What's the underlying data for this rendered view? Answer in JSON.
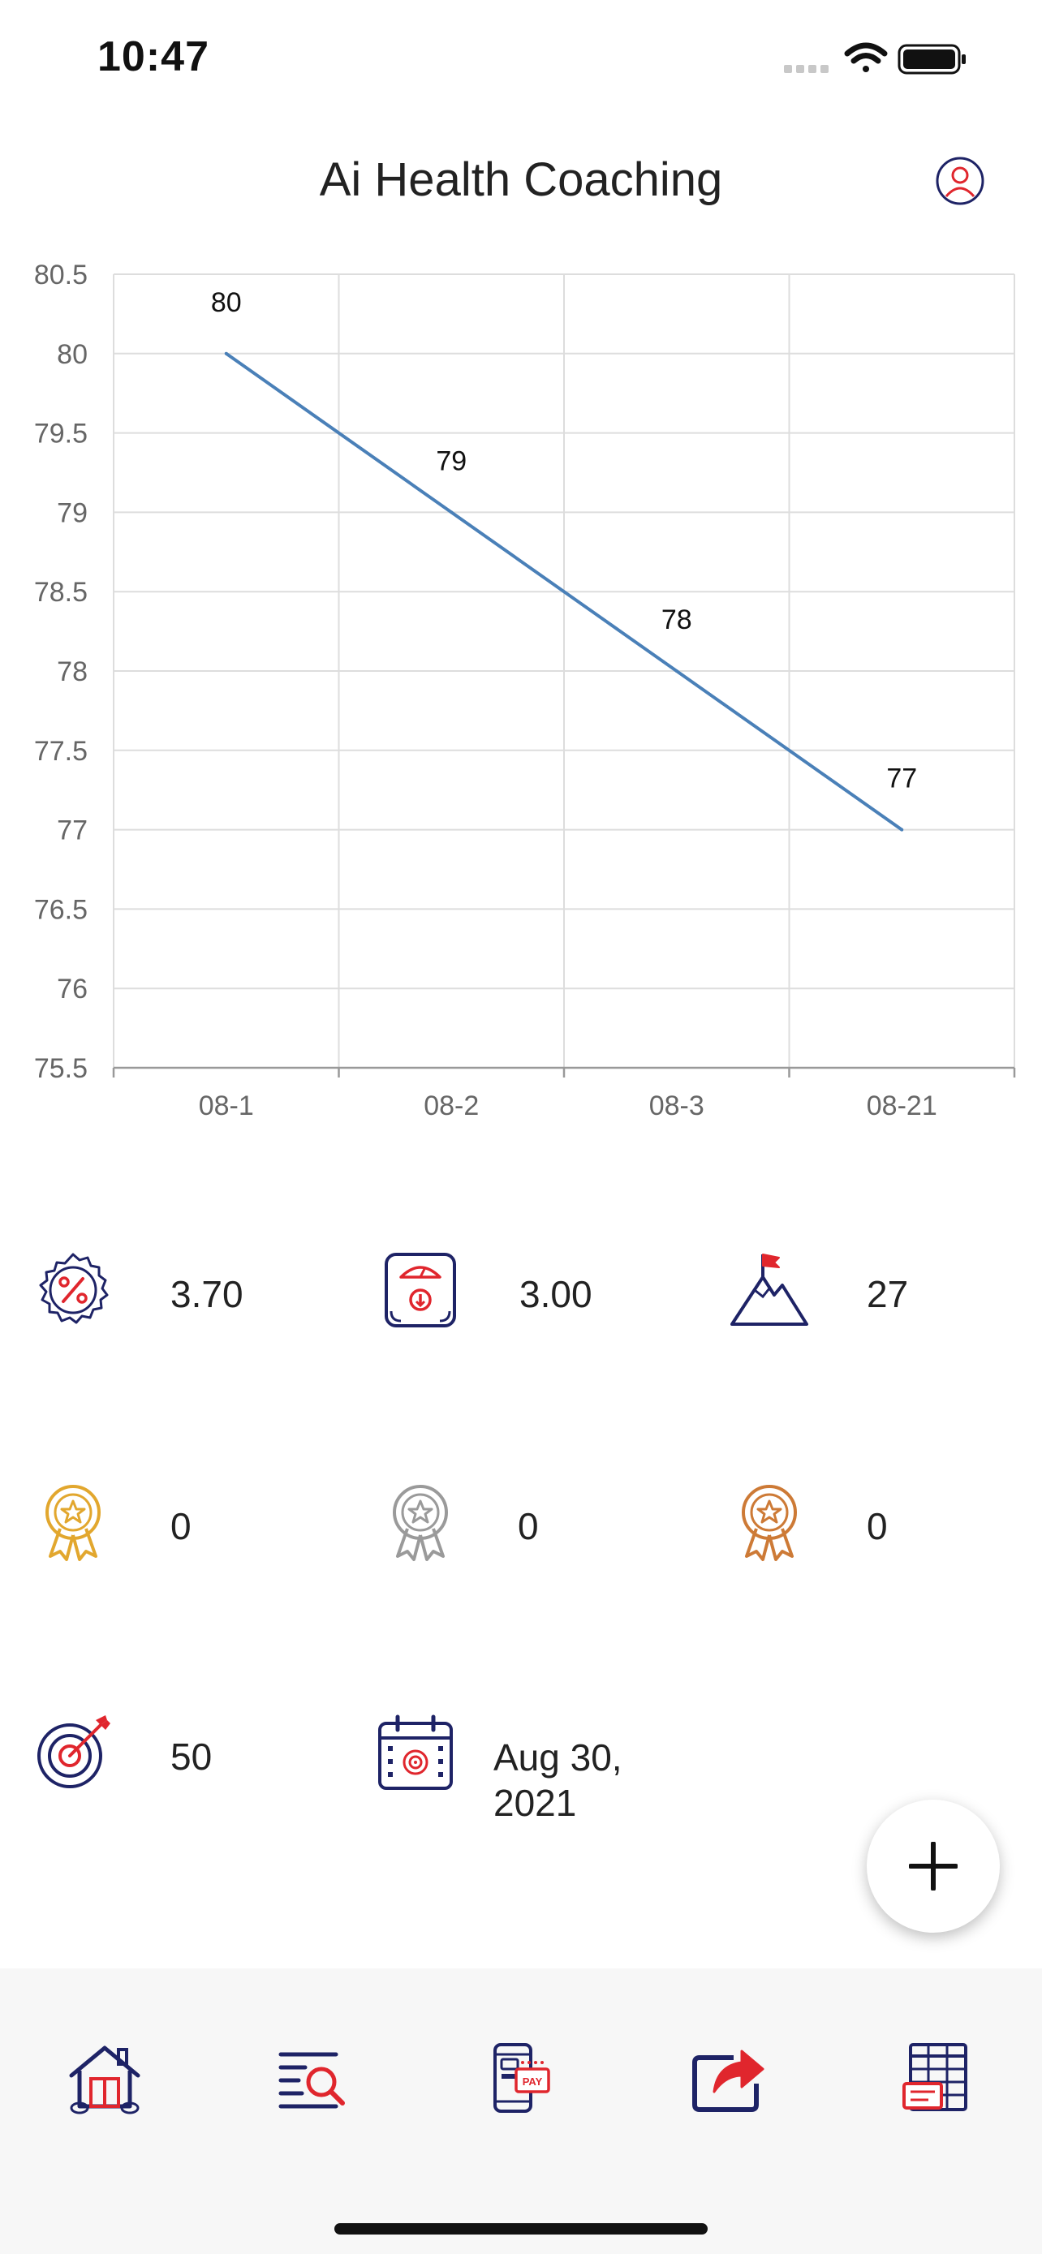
{
  "status_bar": {
    "time": "10:47"
  },
  "header": {
    "title": "Ai Health Coaching"
  },
  "chart_data": {
    "type": "line",
    "categories": [
      "08-1",
      "08-2",
      "08-3",
      "08-21"
    ],
    "series": [
      {
        "values": [
          80,
          79,
          78,
          77
        ]
      }
    ],
    "data_labels": [
      "80",
      "79",
      "78",
      "77"
    ],
    "y_ticks": [
      "80.5",
      "80",
      "79.5",
      "79",
      "78.5",
      "78",
      "77.5",
      "77",
      "76.5",
      "76",
      "75.5"
    ],
    "ylim": [
      75.5,
      80.5
    ],
    "grid": true,
    "line_color": "#4a80b8",
    "title": "",
    "xlabel": "",
    "ylabel": ""
  },
  "stats": [
    {
      "icon": "percent-badge-icon",
      "value": "3.70"
    },
    {
      "icon": "weight-scale-icon",
      "value": "3.00"
    },
    {
      "icon": "mountain-flag-icon",
      "value": "27"
    },
    {
      "icon": "gold-medal-icon",
      "value": "0"
    },
    {
      "icon": "silver-medal-icon",
      "value": "0"
    },
    {
      "icon": "bronze-medal-icon",
      "value": "0"
    },
    {
      "icon": "target-icon",
      "value": "50"
    },
    {
      "icon": "calendar-icon",
      "value_line1": "Aug 30,",
      "value_line2": "2021"
    }
  ],
  "bottom_nav": [
    {
      "icon": "home-icon"
    },
    {
      "icon": "search-list-icon"
    },
    {
      "icon": "mobile-pay-icon"
    },
    {
      "icon": "share-icon"
    },
    {
      "icon": "spreadsheet-icon"
    }
  ],
  "colors": {
    "navy": "#1e2366",
    "red": "#e0262d",
    "gold": "#e2a72e",
    "silver": "#9a9a9a",
    "bronze": "#cd7a36",
    "chart_line": "#4a80b8",
    "grid": "#dddddd"
  }
}
